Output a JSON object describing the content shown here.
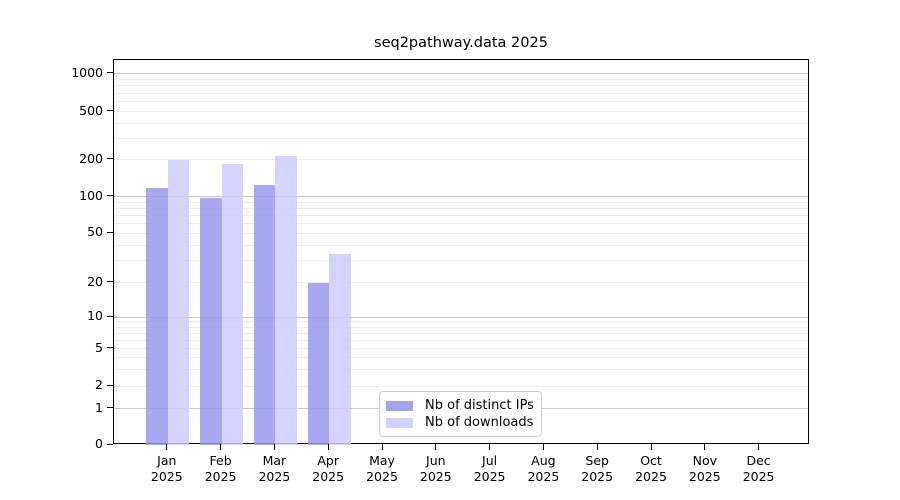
{
  "chart_data": {
    "type": "bar",
    "title": "seq2pathway.data 2025",
    "year": "2025",
    "categories": [
      "Jan",
      "Feb",
      "Mar",
      "Apr",
      "May",
      "Jun",
      "Jul",
      "Aug",
      "Sep",
      "Oct",
      "Nov",
      "Dec"
    ],
    "series": [
      {
        "name": "Nb of distinct IPs",
        "color": "#9999ee",
        "values": [
          118,
          97,
          124,
          20,
          0,
          0,
          0,
          0,
          0,
          0,
          0,
          0
        ]
      },
      {
        "name": "Nb of downloads",
        "color": "#ccccff",
        "values": [
          197,
          185,
          215,
          34,
          0,
          0,
          0,
          0,
          0,
          0,
          0,
          0
        ]
      }
    ],
    "y_ticks": [
      0,
      1,
      2,
      5,
      10,
      20,
      50,
      100,
      200,
      500,
      1000
    ],
    "yscale": "log-like",
    "ylim": [
      0,
      1200
    ],
    "xlabel": "",
    "ylabel": "",
    "grid": true,
    "legend_position": "lower center"
  },
  "colors": {
    "major_grid": "#c9c9c9",
    "minor_grid": "#ececec",
    "spine": "#000000",
    "text": "#000000",
    "legend_border": "#cccccc",
    "background": "#ffffff"
  }
}
